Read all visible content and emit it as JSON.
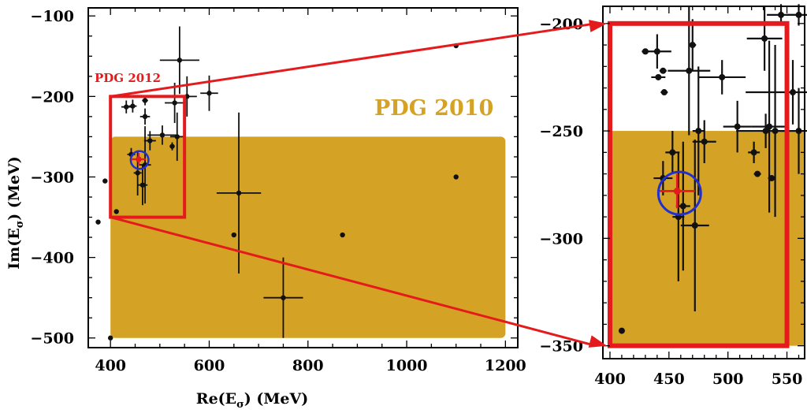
{
  "colors": {
    "band": "#D4A225",
    "pdg2012": "#E41A1C",
    "circle": "#1F2FD0",
    "points": "#111111"
  },
  "chart_data": [
    {
      "type": "scatter",
      "xlabel": "Re(E",
      "xlabel_sub": "σ",
      "xlabel_unit": ") (MeV)",
      "ylabel": "Im(E",
      "ylabel_sub": "σ",
      "ylabel_unit": ") (MeV)",
      "xlim": [
        355,
        1225
      ],
      "ylim": [
        -512,
        -90
      ],
      "xticks": [
        400,
        600,
        800,
        1000,
        1200
      ],
      "yticks": [
        -100,
        -200,
        -300,
        -400,
        -500
      ],
      "xtick_labels": [
        "400",
        "600",
        "800",
        "1000",
        "1200"
      ],
      "ytick_labels": [
        "−100",
        "−200",
        "−300",
        "−400",
        "−500"
      ],
      "band": {
        "label": "PDG 2010",
        "x": [
          400,
          1200
        ],
        "y": [
          -500,
          -250
        ]
      },
      "pdg2012": {
        "label": "PDG 2012",
        "x": [
          400,
          550
        ],
        "y": [
          -350,
          -200
        ]
      },
      "circle": {
        "x": 459,
        "y": -279,
        "r": 18
      },
      "red_point": {
        "x": 457,
        "y": -278,
        "xerr": 15,
        "yerr": 8
      },
      "points": [
        {
          "x": 375,
          "y": -356
        },
        {
          "x": 389,
          "y": -305
        },
        {
          "x": 400,
          "y": -500
        },
        {
          "x": 412,
          "y": -343
        },
        {
          "x": 650,
          "y": -372
        },
        {
          "x": 870,
          "y": -372
        },
        {
          "x": 1100,
          "y": -137
        },
        {
          "x": 1100,
          "y": -300
        },
        {
          "x": 540,
          "y": -155,
          "xerr": 40,
          "yerr": 42
        },
        {
          "x": 600,
          "y": -196,
          "xerr": 18,
          "yerr": 22
        },
        {
          "x": 555,
          "y": -200,
          "xerr": 20,
          "yerr": 25
        },
        {
          "x": 470,
          "y": -205,
          "xerr": 6,
          "yerr": 6
        },
        {
          "x": 432,
          "y": -213,
          "xerr": 10,
          "yerr": 8
        },
        {
          "x": 445,
          "y": -212,
          "xerr": 8,
          "yerr": 8
        },
        {
          "x": 470,
          "y": -225,
          "xerr": 10,
          "yerr": 10
        },
        {
          "x": 530,
          "y": -208,
          "xerr": 20,
          "yerr": 25
        },
        {
          "x": 505,
          "y": -248,
          "xerr": 30,
          "yerr": 12
        },
        {
          "x": 535,
          "y": -250,
          "xerr": 14,
          "yerr": 30
        },
        {
          "x": 480,
          "y": -255,
          "xerr": 12,
          "yerr": 12
        },
        {
          "x": 525,
          "y": -262,
          "xerr": 5,
          "yerr": 5
        },
        {
          "x": 455,
          "y": -295,
          "xerr": 8,
          "yerr": 28
        },
        {
          "x": 470,
          "y": -285,
          "xerr": 12,
          "yerr": 48
        },
        {
          "x": 442,
          "y": -272,
          "xerr": 8,
          "yerr": 8
        },
        {
          "x": 465,
          "y": -310,
          "xerr": 10,
          "yerr": 25
        },
        {
          "x": 660,
          "y": -320,
          "xerr": 45,
          "yerr": 100
        },
        {
          "x": 750,
          "y": -450,
          "xerr": 40,
          "yerr": 50
        }
      ]
    },
    {
      "type": "scatter",
      "xlim": [
        394,
        565
      ],
      "ylim": [
        -356,
        -192
      ],
      "xticks": [
        400,
        450,
        500,
        550
      ],
      "yticks": [
        -200,
        -250,
        -300,
        -350
      ],
      "xtick_labels": [
        "400",
        "450",
        "500",
        "550"
      ],
      "ytick_labels": [
        "−200",
        "−250",
        "−300",
        "−350"
      ],
      "band": {
        "x": [
          400,
          565
        ],
        "y": [
          -350,
          -250
        ]
      },
      "pdg2012": {
        "x": [
          400,
          550
        ],
        "y": [
          -350,
          -200
        ]
      },
      "circle": {
        "x": 459,
        "y": -279,
        "r": 18
      },
      "red_point": {
        "x": 457,
        "y": -278,
        "xerr": 15,
        "yerr": 8
      },
      "points": [
        {
          "x": 410,
          "y": -343
        },
        {
          "x": 430,
          "y": -213,
          "xerr": 3
        },
        {
          "x": 440,
          "y": -213,
          "xerr": 12,
          "yerr": 8
        },
        {
          "x": 441,
          "y": -225,
          "xerr": 6
        },
        {
          "x": 445,
          "y": -222,
          "xerr": 3
        },
        {
          "x": 446,
          "y": -232,
          "xerr": 3
        },
        {
          "x": 445,
          "y": -272,
          "xerr": 8,
          "yerr": 8
        },
        {
          "x": 453,
          "y": -260,
          "xerr": 6,
          "yerr": 10
        },
        {
          "x": 458,
          "y": -290,
          "xerr": 5,
          "yerr": 30
        },
        {
          "x": 462,
          "y": -285,
          "xerr": 6,
          "yerr": 30
        },
        {
          "x": 467,
          "y": -222,
          "xerr": 18,
          "yerr": 30
        },
        {
          "x": 470,
          "y": -210,
          "xerr": 3,
          "yerr": 12
        },
        {
          "x": 472,
          "y": -294,
          "xerr": 12,
          "yerr": 40
        },
        {
          "x": 475,
          "y": -250,
          "xerr": 5,
          "yerr": 30
        },
        {
          "x": 480,
          "y": -255,
          "xerr": 10,
          "yerr": 10
        },
        {
          "x": 495,
          "y": -225,
          "xerr": 20,
          "yerr": 8
        },
        {
          "x": 508,
          "y": -248,
          "xerr": 12,
          "yerr": 12
        },
        {
          "x": 522,
          "y": -260,
          "xerr": 5,
          "yerr": 5
        },
        {
          "x": 525,
          "y": -270,
          "xerr": 3
        },
        {
          "x": 531,
          "y": -207,
          "xerr": 15,
          "yerr": 15
        },
        {
          "x": 532,
          "y": -250,
          "xerr": 25,
          "yerr": 8
        },
        {
          "x": 535,
          "y": -248,
          "xerr": 15,
          "yerr": 40
        },
        {
          "x": 537,
          "y": -272,
          "xerr": 3
        },
        {
          "x": 540,
          "y": -250,
          "xerr": 12,
          "yerr": 40
        },
        {
          "x": 545,
          "y": -196,
          "xerr": 12,
          "yerr": 5
        },
        {
          "x": 560,
          "y": -196,
          "xerr": 10,
          "yerr": 5
        },
        {
          "x": 555,
          "y": -232,
          "xerr": 40,
          "yerr": 15
        },
        {
          "x": 560,
          "y": -250,
          "xerr": 15,
          "yerr": 20
        }
      ]
    }
  ]
}
